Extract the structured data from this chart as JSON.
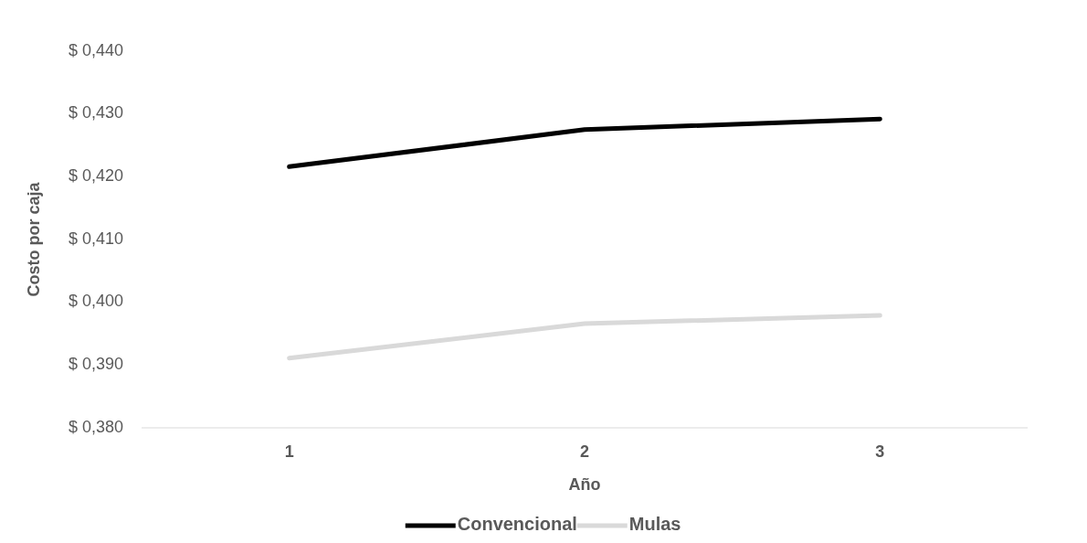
{
  "chart_data": {
    "type": "line",
    "xlabel": "Año",
    "ylabel": "Costo por caja",
    "categories": [
      "1",
      "2",
      "3"
    ],
    "series": [
      {
        "name": "Convencional",
        "color": "#000000",
        "values": [
          0.4216,
          0.4275,
          0.4292
        ]
      },
      {
        "name": "Mulas",
        "color": "#d9d9d9",
        "values": [
          0.3911,
          0.3966,
          0.3979
        ]
      }
    ],
    "ylim": [
      0.38,
      0.44
    ],
    "yticks": [
      {
        "value": 0.38,
        "label": "$ 0,380"
      },
      {
        "value": 0.39,
        "label": "$ 0,390"
      },
      {
        "value": 0.4,
        "label": "$ 0,400"
      },
      {
        "value": 0.41,
        "label": "$ 0,410"
      },
      {
        "value": 0.42,
        "label": "$ 0,420"
      },
      {
        "value": 0.43,
        "label": "$ 0,430"
      },
      {
        "value": 0.44,
        "label": "$ 0,440"
      }
    ],
    "grid": false,
    "legend": "bottom",
    "marker": "none",
    "line_style": "solid"
  }
}
